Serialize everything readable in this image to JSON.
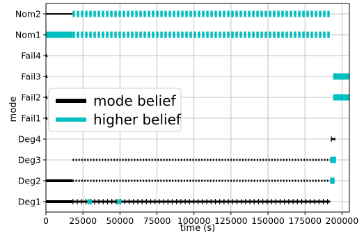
{
  "chart_data": {
    "type": "timeline",
    "title": "",
    "xlabel": "time (s)",
    "ylabel": "mode",
    "xlim": [
      0,
      205000
    ],
    "x_ticks": [
      0,
      25000,
      50000,
      75000,
      100000,
      125000,
      150000,
      175000,
      200000
    ],
    "x_tick_labels": [
      "0",
      "25000",
      "50000",
      "75000",
      "100000",
      "125000",
      "150000",
      "175000",
      "200000"
    ],
    "categories": [
      "Deg1",
      "Deg2",
      "Deg3",
      "Deg4",
      "Fail1",
      "Fail2",
      "Fail3",
      "Fail4",
      "Nom1",
      "Nom2"
    ],
    "grid": true,
    "legend_position": "center-left",
    "series": [
      {
        "name": "mode belief",
        "color": "#000000",
        "segments": [
          {
            "mode": "Nom2",
            "start": 0,
            "end": 18000,
            "style": "thin"
          },
          {
            "mode": "Fail4",
            "start": 0,
            "end": 600,
            "style": "point"
          },
          {
            "mode": "Fail3",
            "start": 0,
            "end": 600,
            "style": "point"
          },
          {
            "mode": "Fail2",
            "start": 0,
            "end": 600,
            "style": "point"
          },
          {
            "mode": "Fail1",
            "start": 0,
            "end": 600,
            "style": "point"
          },
          {
            "mode": "Deg3",
            "start": 18000,
            "end": 192000,
            "style": "dotted"
          },
          {
            "mode": "Deg2",
            "start": 0,
            "end": 18000,
            "style": "solid"
          },
          {
            "mode": "Deg2",
            "start": 18000,
            "end": 192000,
            "style": "dotted"
          },
          {
            "mode": "Deg1",
            "start": 0,
            "end": 18000,
            "style": "solid"
          },
          {
            "mode": "Deg1",
            "start": 18000,
            "end": 192000,
            "style": "ticks"
          },
          {
            "mode": "Deg4",
            "start": 192500,
            "end": 195500,
            "style": "ticks"
          },
          {
            "mode": "Fail3",
            "start": 198000,
            "end": 202000,
            "style": "ticks"
          }
        ]
      },
      {
        "name": "higher belief",
        "color": "#00bfbf",
        "segments": [
          {
            "mode": "Nom2",
            "start": 18000,
            "end": 192000,
            "style": "dashed"
          },
          {
            "mode": "Nom1",
            "start": 0,
            "end": 18000,
            "style": "solid"
          },
          {
            "mode": "Nom1",
            "start": 18000,
            "end": 192000,
            "style": "dashed"
          },
          {
            "mode": "Fail3",
            "start": 194000,
            "end": 205000,
            "style": "solid"
          },
          {
            "mode": "Fail2",
            "start": 194000,
            "end": 205000,
            "style": "solid"
          },
          {
            "mode": "Deg3",
            "start": 192000,
            "end": 196000,
            "style": "solid"
          },
          {
            "mode": "Deg2",
            "start": 192000,
            "end": 195000,
            "style": "solid"
          },
          {
            "mode": "Deg1",
            "start": 28000,
            "end": 31000,
            "style": "marker"
          },
          {
            "mode": "Deg1",
            "start": 48000,
            "end": 51000,
            "style": "marker"
          }
        ]
      }
    ]
  }
}
